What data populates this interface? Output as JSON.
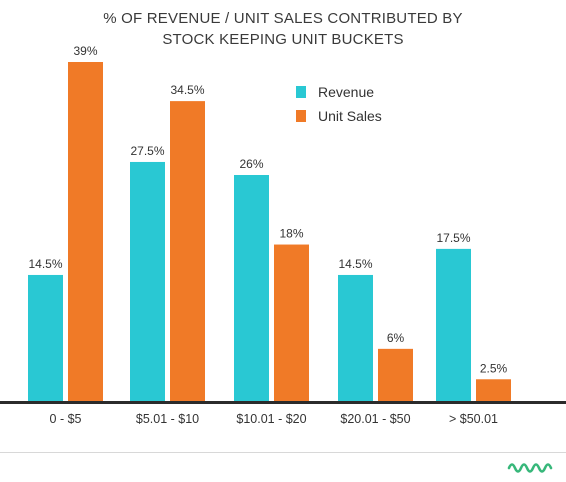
{
  "chart_data": {
    "type": "bar",
    "title_lines": [
      "% OF REVENUE / UNIT SALES CONTRIBUTED BY",
      "STOCK KEEPING UNIT BUCKETS"
    ],
    "categories": [
      "0 - $5",
      "$5.01 - $10",
      "$10.01 - $20",
      "$20.01 - $50",
      "> $50.01"
    ],
    "series": [
      {
        "name": "Revenue",
        "color": "#29c8d3",
        "values": [
          14.5,
          27.5,
          26,
          14.5,
          17.5
        ],
        "labels": [
          "14.5%",
          "27.5%",
          "26%",
          "14.5%",
          "17.5%"
        ]
      },
      {
        "name": "Unit Sales",
        "color": "#f07a27",
        "values": [
          39,
          34.5,
          18,
          6,
          2.5
        ],
        "labels": [
          "39%",
          "34.5%",
          "18%",
          "6%",
          "2.5%"
        ]
      }
    ],
    "ylim": [
      0,
      39
    ],
    "grid": false,
    "legend_position": "top-right"
  },
  "brand": {
    "logo_icon": "swrve-logo-icon",
    "color": "#37b77a"
  }
}
